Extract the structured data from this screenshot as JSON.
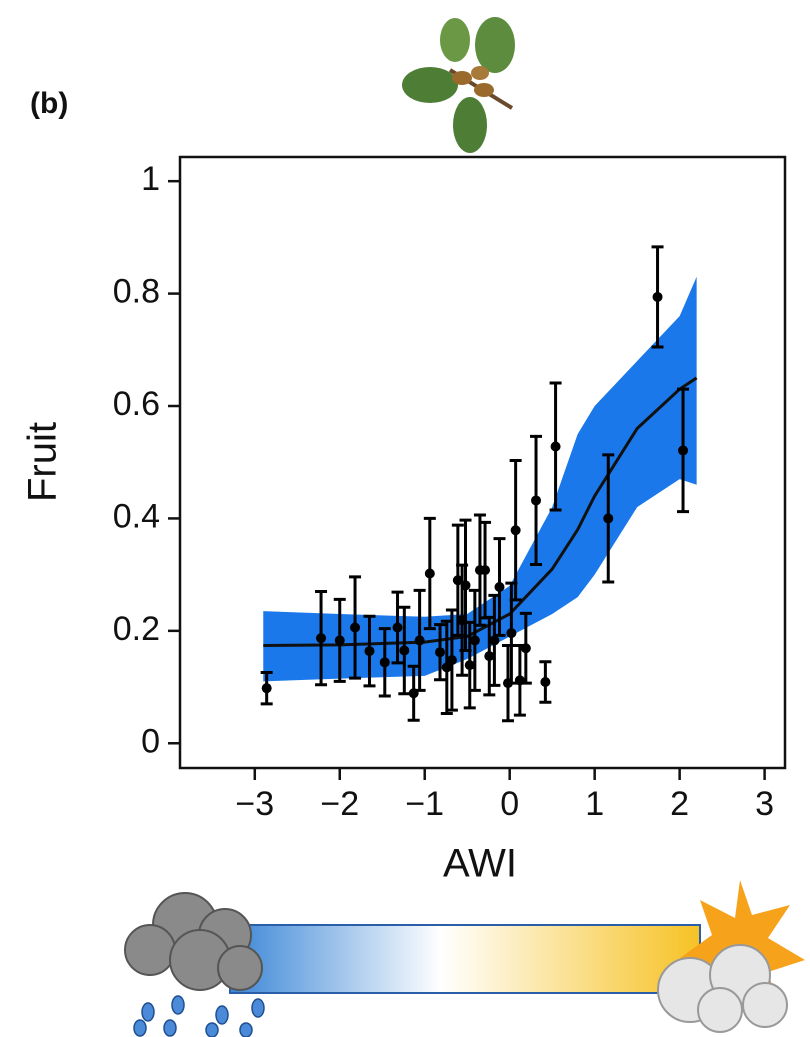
{
  "chart_data": {
    "type": "scatter",
    "panel_label": "(b)",
    "x_label": "AWI",
    "y_label": "Fruit",
    "xlim": [
      -3.88,
      3.24
    ],
    "ylim": [
      -0.044,
      1.043
    ],
    "xticks": [
      {
        "value": -3,
        "label": "−3"
      },
      {
        "value": -2,
        "label": "−2"
      },
      {
        "value": -1,
        "label": "−1"
      },
      0,
      1,
      2,
      3
    ],
    "yticks": [
      0,
      0.2,
      0.4,
      0.6,
      0.8,
      1
    ],
    "point_color": "#000000",
    "band_color": "#1a78ea",
    "x": [
      -2.86,
      -2.22,
      -2.0,
      -1.82,
      -1.65,
      -1.47,
      -1.32,
      -1.24,
      -1.13,
      -1.06,
      -0.94,
      -0.82,
      -0.74,
      -0.68,
      -0.61,
      -0.56,
      -0.52,
      -0.47,
      -0.41,
      -0.35,
      -0.29,
      -0.24,
      -0.18,
      -0.12,
      -0.02,
      0.02,
      0.07,
      0.12,
      0.19,
      0.31,
      0.42,
      0.54,
      1.16,
      1.74,
      2.04
    ],
    "values": [
      0.098,
      0.187,
      0.183,
      0.206,
      0.164,
      0.144,
      0.206,
      0.165,
      0.089,
      0.183,
      0.302,
      0.162,
      0.135,
      0.148,
      0.29,
      0.219,
      0.281,
      0.139,
      0.183,
      0.308,
      0.308,
      0.155,
      0.183,
      0.278,
      0.107,
      0.196,
      0.379,
      0.112,
      0.169,
      0.432,
      0.109,
      0.528,
      0.4,
      0.794,
      0.521
    ],
    "errors": [
      0.028,
      0.083,
      0.073,
      0.09,
      0.062,
      0.06,
      0.063,
      0.077,
      0.048,
      0.089,
      0.098,
      0.049,
      0.082,
      0.089,
      0.098,
      0.098,
      0.116,
      0.076,
      0.089,
      0.098,
      0.085,
      0.069,
      0.08,
      0.086,
      0.067,
      0.089,
      0.124,
      0.062,
      0.062,
      0.114,
      0.036,
      0.113,
      0.113,
      0.089,
      0.109
    ],
    "fit": {
      "x": [
        -2.9,
        -2,
        -1,
        -0.5,
        0,
        0.5,
        0.8,
        1,
        1.5,
        2,
        2.2
      ],
      "y": [
        0.174,
        0.175,
        0.18,
        0.19,
        0.23,
        0.31,
        0.38,
        0.44,
        0.56,
        0.63,
        0.65
      ],
      "lower": [
        0.11,
        0.115,
        0.12,
        0.15,
        0.19,
        0.23,
        0.26,
        0.3,
        0.42,
        0.47,
        0.46
      ],
      "upper": [
        0.235,
        0.23,
        0.225,
        0.23,
        0.28,
        0.42,
        0.55,
        0.6,
        0.68,
        0.76,
        0.83
      ]
    }
  }
}
